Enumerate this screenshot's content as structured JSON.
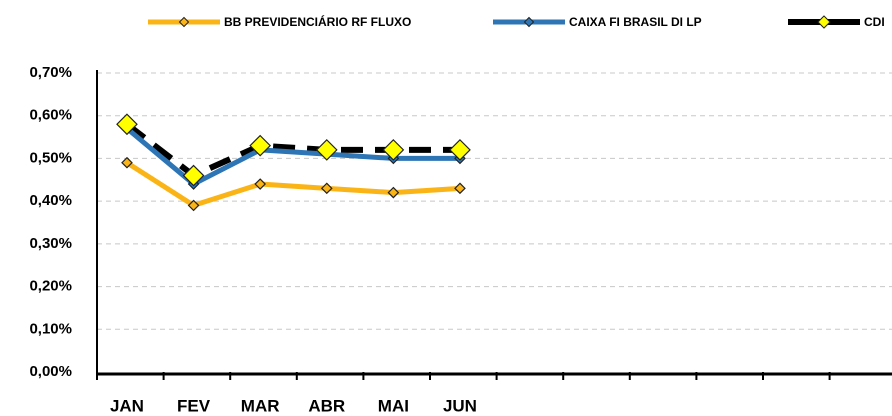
{
  "chart_data": {
    "type": "line",
    "categories": [
      "JAN",
      "FEV",
      "MAR",
      "ABR",
      "MAI",
      "JUN",
      null,
      null,
      null,
      null,
      null,
      null
    ],
    "series": [
      {
        "name": "BB PREVIDENCIÁRIO RF FLUXO",
        "color": "#fbb416",
        "values": [
          0.49,
          0.39,
          0.44,
          0.43,
          0.42,
          0.43,
          null,
          null,
          null,
          null,
          null,
          null
        ]
      },
      {
        "name": "CAIXA FI BRASIL DI LP",
        "color": "#2e75b6",
        "values": [
          0.57,
          0.44,
          0.52,
          0.51,
          0.5,
          0.5,
          null,
          null,
          null,
          null,
          null,
          null
        ]
      },
      {
        "name": "CDI",
        "color": "#000000",
        "marker_color": "#ffff00",
        "values": [
          0.58,
          0.46,
          0.53,
          0.52,
          0.52,
          0.52,
          null,
          null,
          null,
          null,
          null,
          null
        ]
      }
    ],
    "ylim": [
      0,
      0.7
    ],
    "yticks": [
      {
        "value": 0,
        "label": "0,00%"
      },
      {
        "value": 0.1,
        "label": "0,10%"
      },
      {
        "value": 0.2,
        "label": "0,20%"
      },
      {
        "value": 0.3,
        "label": "0,30%"
      },
      {
        "value": 0.4,
        "label": "0,40%"
      },
      {
        "value": 0.5,
        "label": "0,50%"
      },
      {
        "value": 0.6,
        "label": "0,60%"
      },
      {
        "value": 0.7,
        "label": "0,70%"
      }
    ],
    "grid": true,
    "legend": "top"
  }
}
